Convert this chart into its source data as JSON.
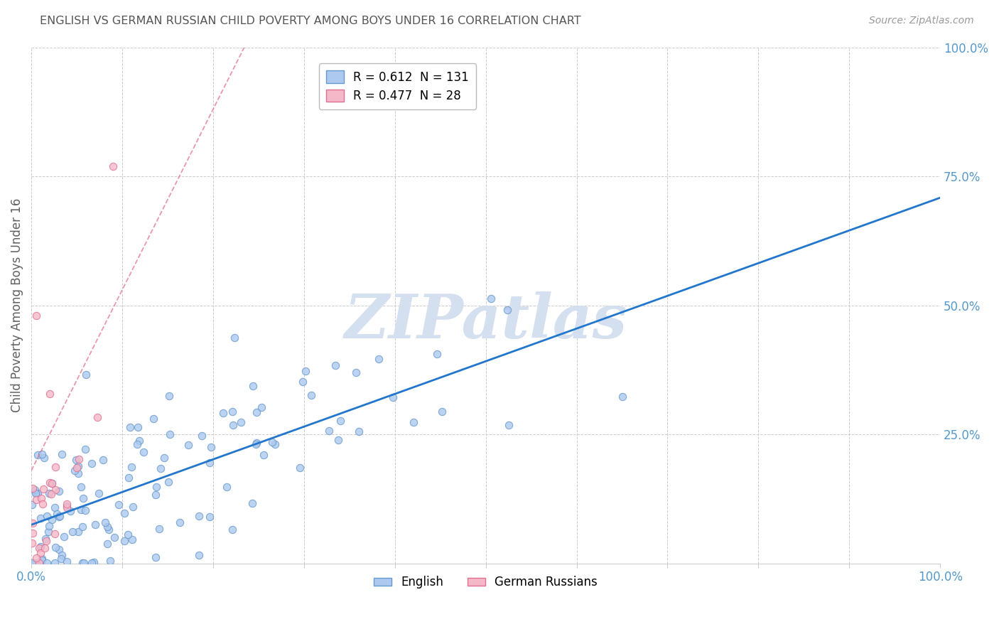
{
  "title": "ENGLISH VS GERMAN RUSSIAN CHILD POVERTY AMONG BOYS UNDER 16 CORRELATION CHART",
  "source": "Source: ZipAtlas.com",
  "ylabel": "Child Poverty Among Boys Under 16",
  "legend_english": "English",
  "legend_german": "German Russians",
  "english_R": 0.612,
  "english_N": 131,
  "german_R": 0.477,
  "german_N": 28,
  "english_color": "#adc9ef",
  "english_edge_color": "#6699cc",
  "german_color": "#f5b8c8",
  "german_edge_color": "#e07090",
  "trendline_english_color": "#2277cc",
  "trendline_german_color": "#e06080",
  "watermark_color": "#d4dff0",
  "grid_color": "#cccccc",
  "title_color": "#555555",
  "axis_tick_color": "#5599cc",
  "legend_border_color": "#bbbbbb",
  "xlim": [
    0.0,
    1.0
  ],
  "ylim": [
    0.0,
    1.0
  ],
  "yticks": [
    0.25,
    0.5,
    0.75,
    1.0
  ],
  "ytick_labels": [
    "25.0%",
    "50.0%",
    "75.0%",
    "100.0%"
  ]
}
